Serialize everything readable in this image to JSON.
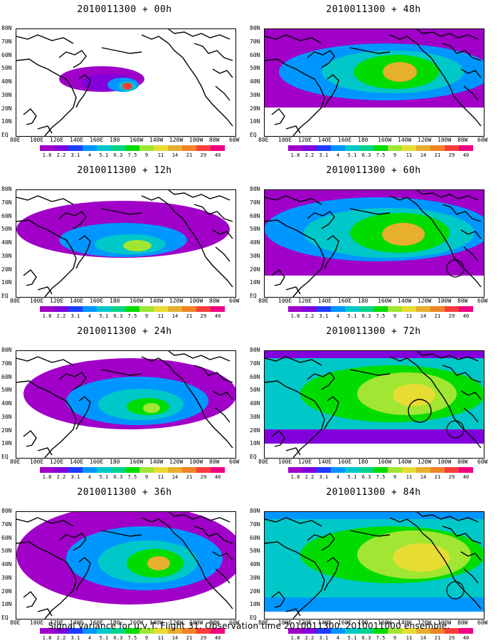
{
  "panels": [
    {
      "title": "2010011300 + 00h",
      "level": 0
    },
    {
      "title": "2010011300 + 48h",
      "level": 4
    },
    {
      "title": "2010011300 + 12h",
      "level": 1
    },
    {
      "title": "2010011300 + 60h",
      "level": 5
    },
    {
      "title": "2010011300 + 24h",
      "level": 2
    },
    {
      "title": "2010011300 + 72h",
      "level": 6
    },
    {
      "title": "2010011300 + 36h",
      "level": 3
    },
    {
      "title": "2010011300 + 84h",
      "level": 7
    }
  ],
  "lat_labels": [
    "80N",
    "70N",
    "60N",
    "50N",
    "40N",
    "30N",
    "20N",
    "10N",
    "EQ"
  ],
  "lon_labels": [
    "80E",
    "100E",
    "120E",
    "140E",
    "160E",
    "180",
    "160W",
    "140W",
    "120W",
    "100W",
    "80W",
    "60W"
  ],
  "colorbar": {
    "labels": [
      "1.8",
      "2.2",
      "3.1",
      "4",
      "5.1",
      "6.3",
      "7.5",
      "9",
      "11",
      "14",
      "21",
      "29",
      "40"
    ],
    "colors": [
      "#a000c8",
      "#8200dc",
      "#1e3cff",
      "#0096ff",
      "#00c8c8",
      "#00d28c",
      "#00dc00",
      "#a0e632",
      "#e6dc32",
      "#e6af2d",
      "#f08228",
      "#fa3c3c",
      "#f00082"
    ]
  },
  "footer": "Signal Variance for u,v,T. Flight 31. Observation time 2010011300. 2010011000 ensemble."
}
